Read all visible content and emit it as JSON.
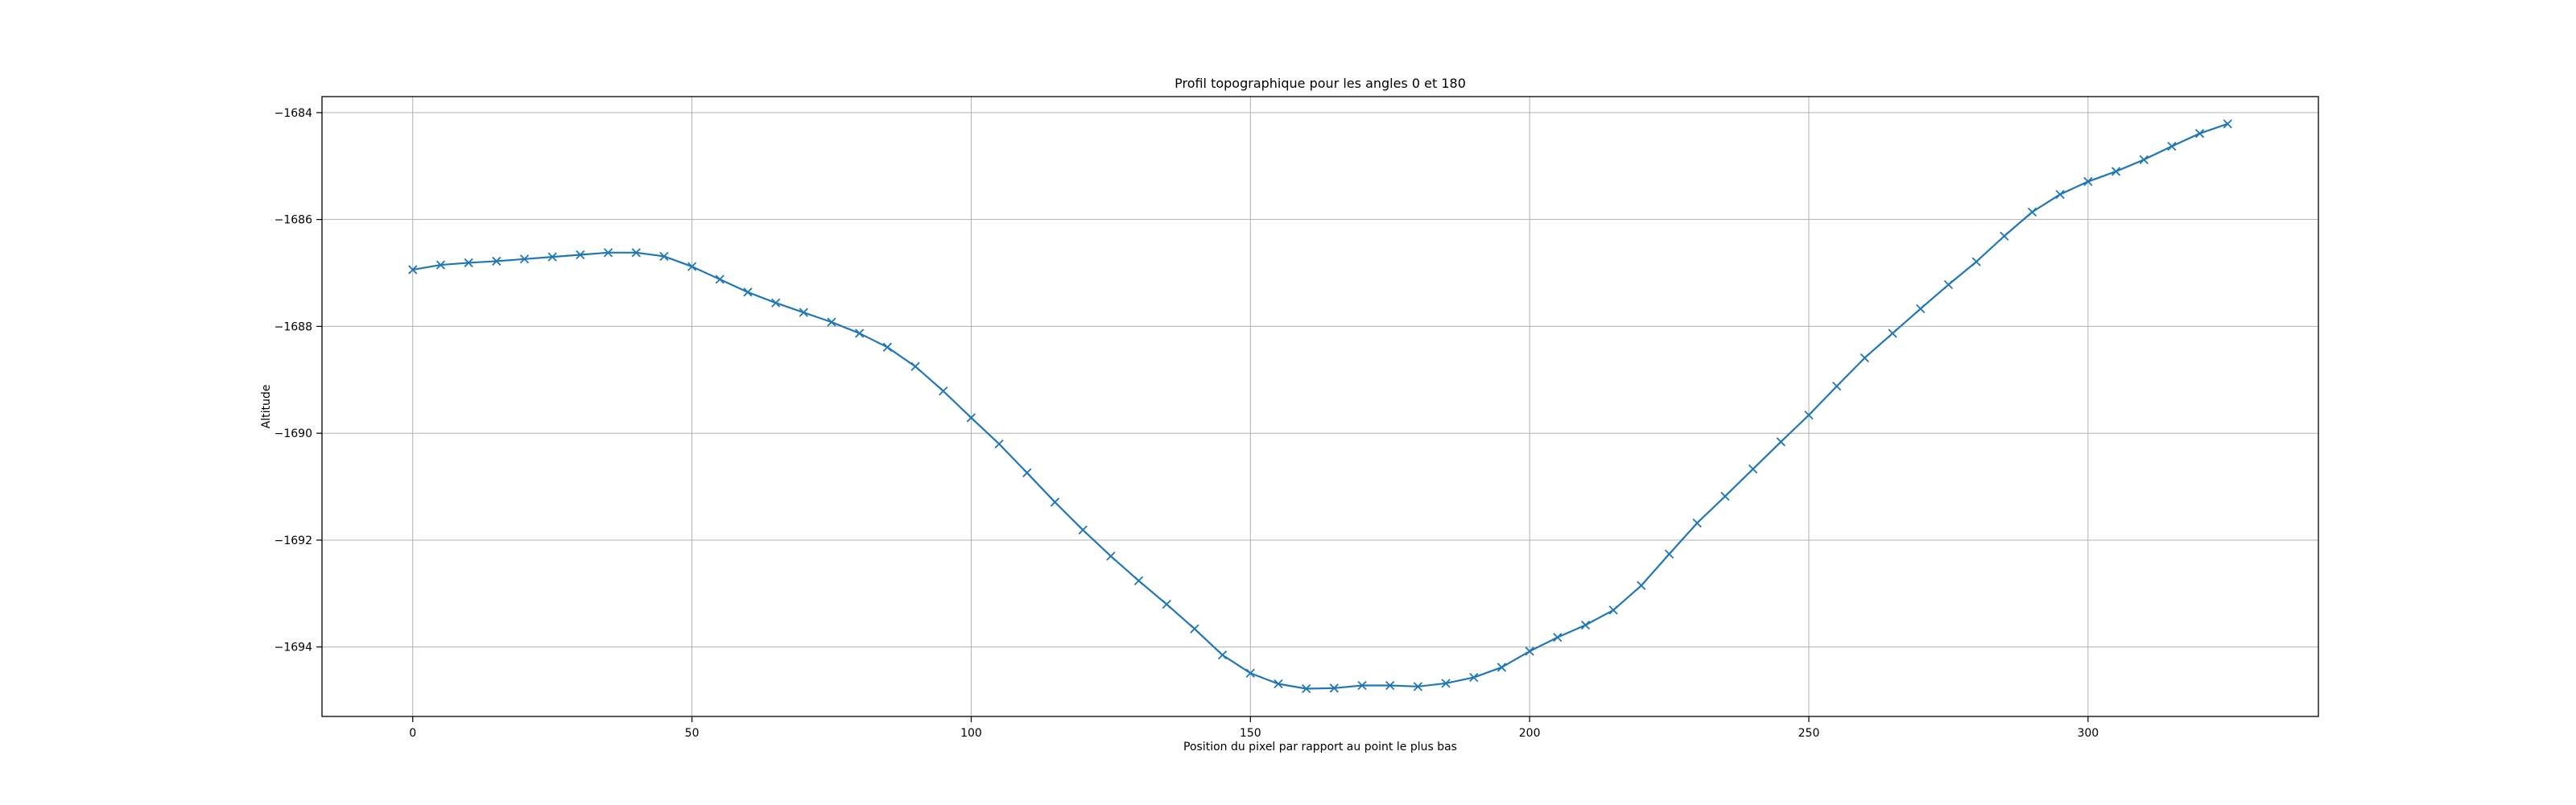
{
  "chart_data": {
    "type": "line",
    "title": "Profil topographique pour les angles 0 et 180",
    "xlabel": "Position du pixel par rapport au point le plus bas",
    "ylabel": "Altitude",
    "xlim": [
      -16.25,
      341.25
    ],
    "ylim": [
      -1695.3,
      -1683.7
    ],
    "xticks": [
      0,
      50,
      100,
      150,
      200,
      250,
      300
    ],
    "yticks": [
      -1694,
      -1692,
      -1690,
      -1688,
      -1686,
      -1684
    ],
    "grid": true,
    "marker": "x",
    "color": "#1f77b4",
    "series": [
      {
        "x": [
          0,
          5,
          10,
          15,
          20,
          25,
          30,
          35,
          40,
          45,
          50,
          55,
          60,
          65,
          70,
          75,
          80,
          85,
          90,
          95,
          100,
          105,
          110,
          115,
          120,
          125,
          130,
          135,
          140,
          145,
          150,
          155,
          160,
          165,
          170,
          175,
          180,
          185,
          190,
          195,
          200,
          205,
          210,
          215,
          220,
          225,
          230,
          235,
          240,
          245,
          250,
          255,
          260,
          265,
          270,
          275,
          280,
          285,
          290,
          295,
          300,
          305,
          310,
          315,
          320,
          325
        ],
        "y": [
          -1686.94,
          -1686.85,
          -1686.81,
          -1686.78,
          -1686.74,
          -1686.7,
          -1686.66,
          -1686.62,
          -1686.62,
          -1686.69,
          -1686.88,
          -1687.12,
          -1687.36,
          -1687.56,
          -1687.74,
          -1687.92,
          -1688.13,
          -1688.39,
          -1688.75,
          -1689.21,
          -1689.71,
          -1690.2,
          -1690.74,
          -1691.29,
          -1691.81,
          -1692.3,
          -1692.76,
          -1693.2,
          -1693.66,
          -1694.15,
          -1694.49,
          -1694.69,
          -1694.78,
          -1694.77,
          -1694.72,
          -1694.72,
          -1694.74,
          -1694.68,
          -1694.57,
          -1694.38,
          -1694.08,
          -1693.82,
          -1693.59,
          -1693.31,
          -1692.85,
          -1692.26,
          -1691.68,
          -1691.18,
          -1690.67,
          -1690.16,
          -1689.66,
          -1689.12,
          -1688.59,
          -1688.13,
          -1687.67,
          -1687.22,
          -1686.79,
          -1686.31,
          -1685.86,
          -1685.53,
          -1685.29,
          -1685.1,
          -1684.88,
          -1684.63,
          -1684.39,
          -1684.21
        ]
      }
    ]
  }
}
